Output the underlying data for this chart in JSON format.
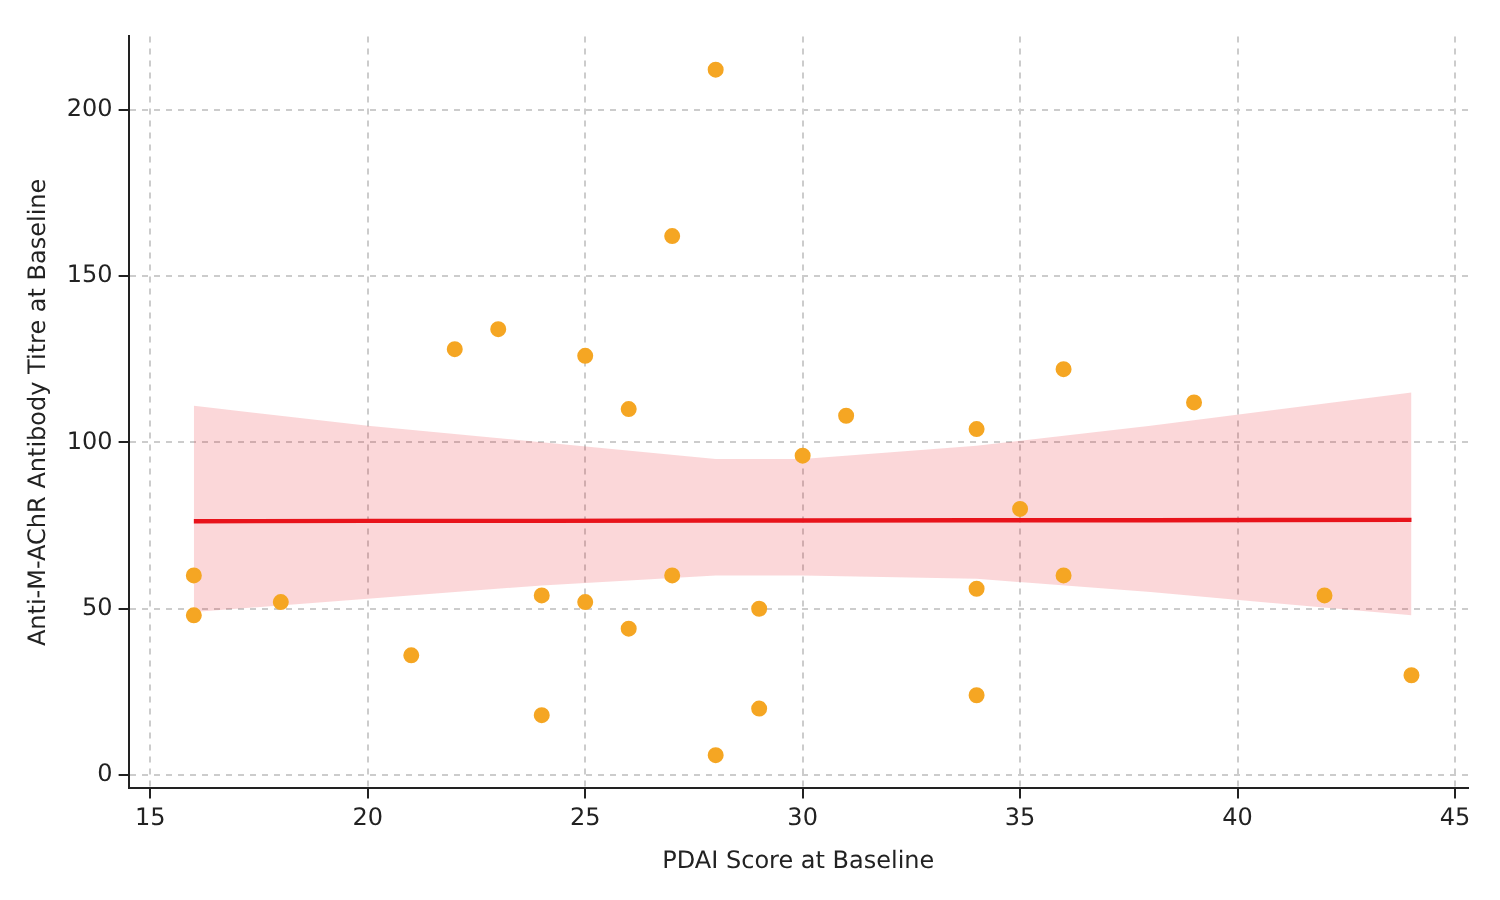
{
  "chart_data": {
    "type": "scatter",
    "xlabel": "PDAI Score at Baseline",
    "ylabel": "Anti-M-AChR Antibody Titre at Baseline",
    "xlim": [
      14.5,
      45.3
    ],
    "xticks": [
      15,
      20,
      25,
      30,
      35,
      40,
      45
    ],
    "ylim": [
      -4,
      222
    ],
    "yticks": [
      0,
      50,
      100,
      150,
      200
    ],
    "grid": true,
    "legend": false,
    "series": [
      {
        "type": "scatter",
        "marker": "circle",
        "color": "#f5a623",
        "x": [
          16,
          16,
          18,
          21,
          22,
          23,
          24,
          24,
          25,
          25,
          26,
          26,
          27,
          27,
          28,
          28,
          29,
          29,
          30,
          31,
          34,
          34,
          34,
          35,
          36,
          36,
          39,
          42,
          44
        ],
        "values": [
          60,
          48,
          52,
          36,
          128,
          134,
          54,
          18,
          126,
          52,
          110,
          44,
          162,
          60,
          212,
          6,
          50,
          20,
          96,
          108,
          104,
          56,
          24,
          80,
          122,
          60,
          112,
          54,
          30
        ]
      },
      {
        "type": "line",
        "color": "#e8141b",
        "line_style": "solid",
        "x": [
          16,
          20,
          24,
          28,
          30,
          34,
          38,
          44
        ],
        "values": [
          76.3,
          76.4,
          76.4,
          76.5,
          76.5,
          76.6,
          76.6,
          76.7
        ],
        "lower": [
          49,
          53,
          57,
          60,
          60,
          59,
          55,
          48
        ],
        "upper": [
          111,
          105,
          100,
          95,
          95,
          99,
          105,
          115
        ]
      }
    ]
  }
}
